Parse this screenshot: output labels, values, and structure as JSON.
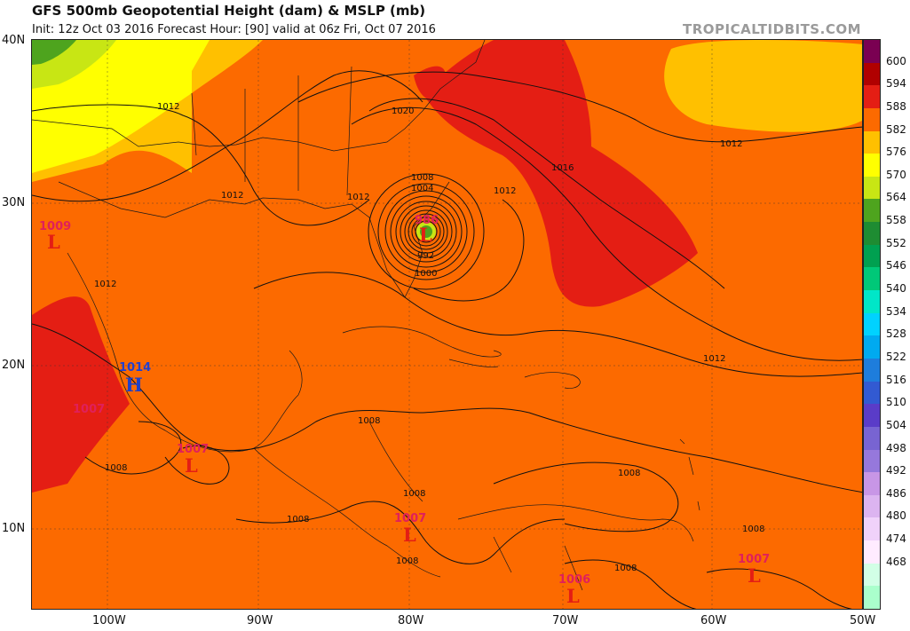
{
  "header": {
    "title": "GFS 500mb Geopotential Height (dam) & MSLP (mb)",
    "subtitle": "Init: 12z Oct 03 2016   Forecast Hour: [90]   valid at 06z Fri, Oct 07 2016",
    "brand": "TROPICALTIDBITS.COM"
  },
  "axes": {
    "lat_labels": [
      "40N",
      "30N",
      "20N",
      "10N"
    ],
    "lon_labels": [
      "100W",
      "90W",
      "80W",
      "70W",
      "60W",
      "50W"
    ]
  },
  "colorbar": {
    "labels": [
      "600",
      "594",
      "588",
      "582",
      "576",
      "570",
      "564",
      "558",
      "552",
      "546",
      "540",
      "534",
      "528",
      "522",
      "516",
      "510",
      "504",
      "498",
      "492",
      "486",
      "480",
      "474",
      "468"
    ],
    "colors": [
      "#7a0052",
      "#b00000",
      "#e41e14",
      "#fc6a00",
      "#ffc000",
      "#ffff00",
      "#c8e614",
      "#4ea41e",
      "#1e8c32",
      "#00a050",
      "#00c878",
      "#00e6c8",
      "#00d2ff",
      "#00aaf0",
      "#1e7ddc",
      "#325ad2",
      "#5a3cc8",
      "#7864d2",
      "#9678dc",
      "#c896e6",
      "#dcb4f0",
      "#f0d2fa",
      "#ffebff",
      "#d2ffe6",
      "#aaffcc"
    ]
  },
  "contour_labels": [
    "1012",
    "1012",
    "1020",
    "1016",
    "1012",
    "1012",
    "1008",
    "1004",
    "992",
    "1000",
    "1012",
    "1012",
    "1012",
    "1008",
    "1008",
    "1008",
    "1008",
    "1008",
    "1008",
    "1008",
    "1008"
  ],
  "systems": [
    {
      "type": "L",
      "value": "1009"
    },
    {
      "type": "H",
      "value": "1014"
    },
    {
      "type": "L",
      "value": "1007"
    },
    {
      "type": "L",
      "value": "1007"
    },
    {
      "type": "L",
      "value": "986"
    },
    {
      "type": "L",
      "value": "1007"
    },
    {
      "type": "L",
      "value": "1006"
    },
    {
      "type": "L",
      "value": "1007"
    }
  ]
}
